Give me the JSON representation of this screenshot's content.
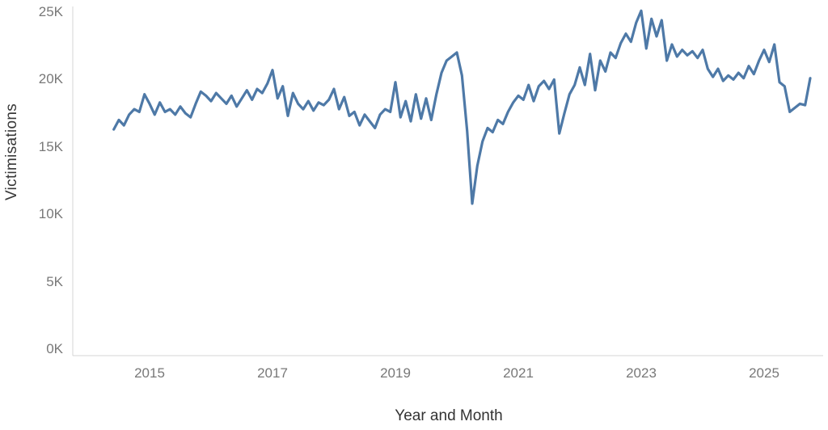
{
  "chart_data": {
    "type": "line",
    "title": "",
    "xlabel": "Year and Month",
    "ylabel": "Victimisations",
    "x_start": "2014-06",
    "x_interval": "month",
    "x_tick_labels": [
      "2015",
      "2017",
      "2019",
      "2021",
      "2023",
      "2025"
    ],
    "y_tick_labels": [
      "0K",
      "5K",
      "10K",
      "15K",
      "20K",
      "25K"
    ],
    "ylim_thousands": [
      0,
      25
    ],
    "values_unit": "thousands (K)",
    "grid": "off",
    "legend": "none",
    "line_color": "#4e79a7",
    "axis_rule_color": "#d4d4d4",
    "series": [
      {
        "name": "Victimisations",
        "values": [
          16.3,
          17.0,
          16.6,
          17.4,
          17.8,
          17.6,
          18.9,
          18.2,
          17.4,
          18.3,
          17.6,
          17.8,
          17.4,
          18.0,
          17.5,
          17.2,
          18.2,
          19.1,
          18.8,
          18.4,
          19.0,
          18.6,
          18.2,
          18.8,
          18.0,
          18.6,
          19.2,
          18.5,
          19.3,
          19.0,
          19.7,
          20.7,
          18.6,
          19.5,
          17.3,
          19.0,
          18.2,
          17.8,
          18.4,
          17.7,
          18.3,
          18.1,
          18.5,
          19.3,
          17.8,
          18.7,
          17.3,
          17.6,
          16.6,
          17.4,
          16.9,
          16.4,
          17.4,
          17.8,
          17.6,
          19.8,
          17.2,
          18.4,
          16.9,
          18.9,
          17.1,
          18.6,
          17.0,
          18.9,
          20.5,
          21.4,
          21.7,
          22.0,
          20.3,
          16.2,
          10.8,
          13.6,
          15.4,
          16.4,
          16.1,
          17.0,
          16.7,
          17.6,
          18.3,
          18.8,
          18.5,
          19.6,
          18.4,
          19.5,
          19.9,
          19.3,
          20.0,
          16.0,
          17.5,
          18.9,
          19.6,
          20.9,
          19.6,
          21.9,
          19.2,
          21.4,
          20.6,
          22.0,
          21.6,
          22.7,
          23.4,
          22.8,
          24.2,
          25.1,
          22.3,
          24.5,
          23.2,
          24.4,
          21.4,
          22.6,
          21.7,
          22.2,
          21.8,
          22.1,
          21.6,
          22.2,
          20.8,
          20.2,
          20.8,
          19.9,
          20.3,
          20.0,
          20.5,
          20.1,
          21.0,
          20.4,
          21.4,
          22.2,
          21.3,
          22.6,
          19.8,
          19.5,
          17.6,
          17.9,
          18.2,
          18.1,
          20.1
        ]
      }
    ]
  }
}
